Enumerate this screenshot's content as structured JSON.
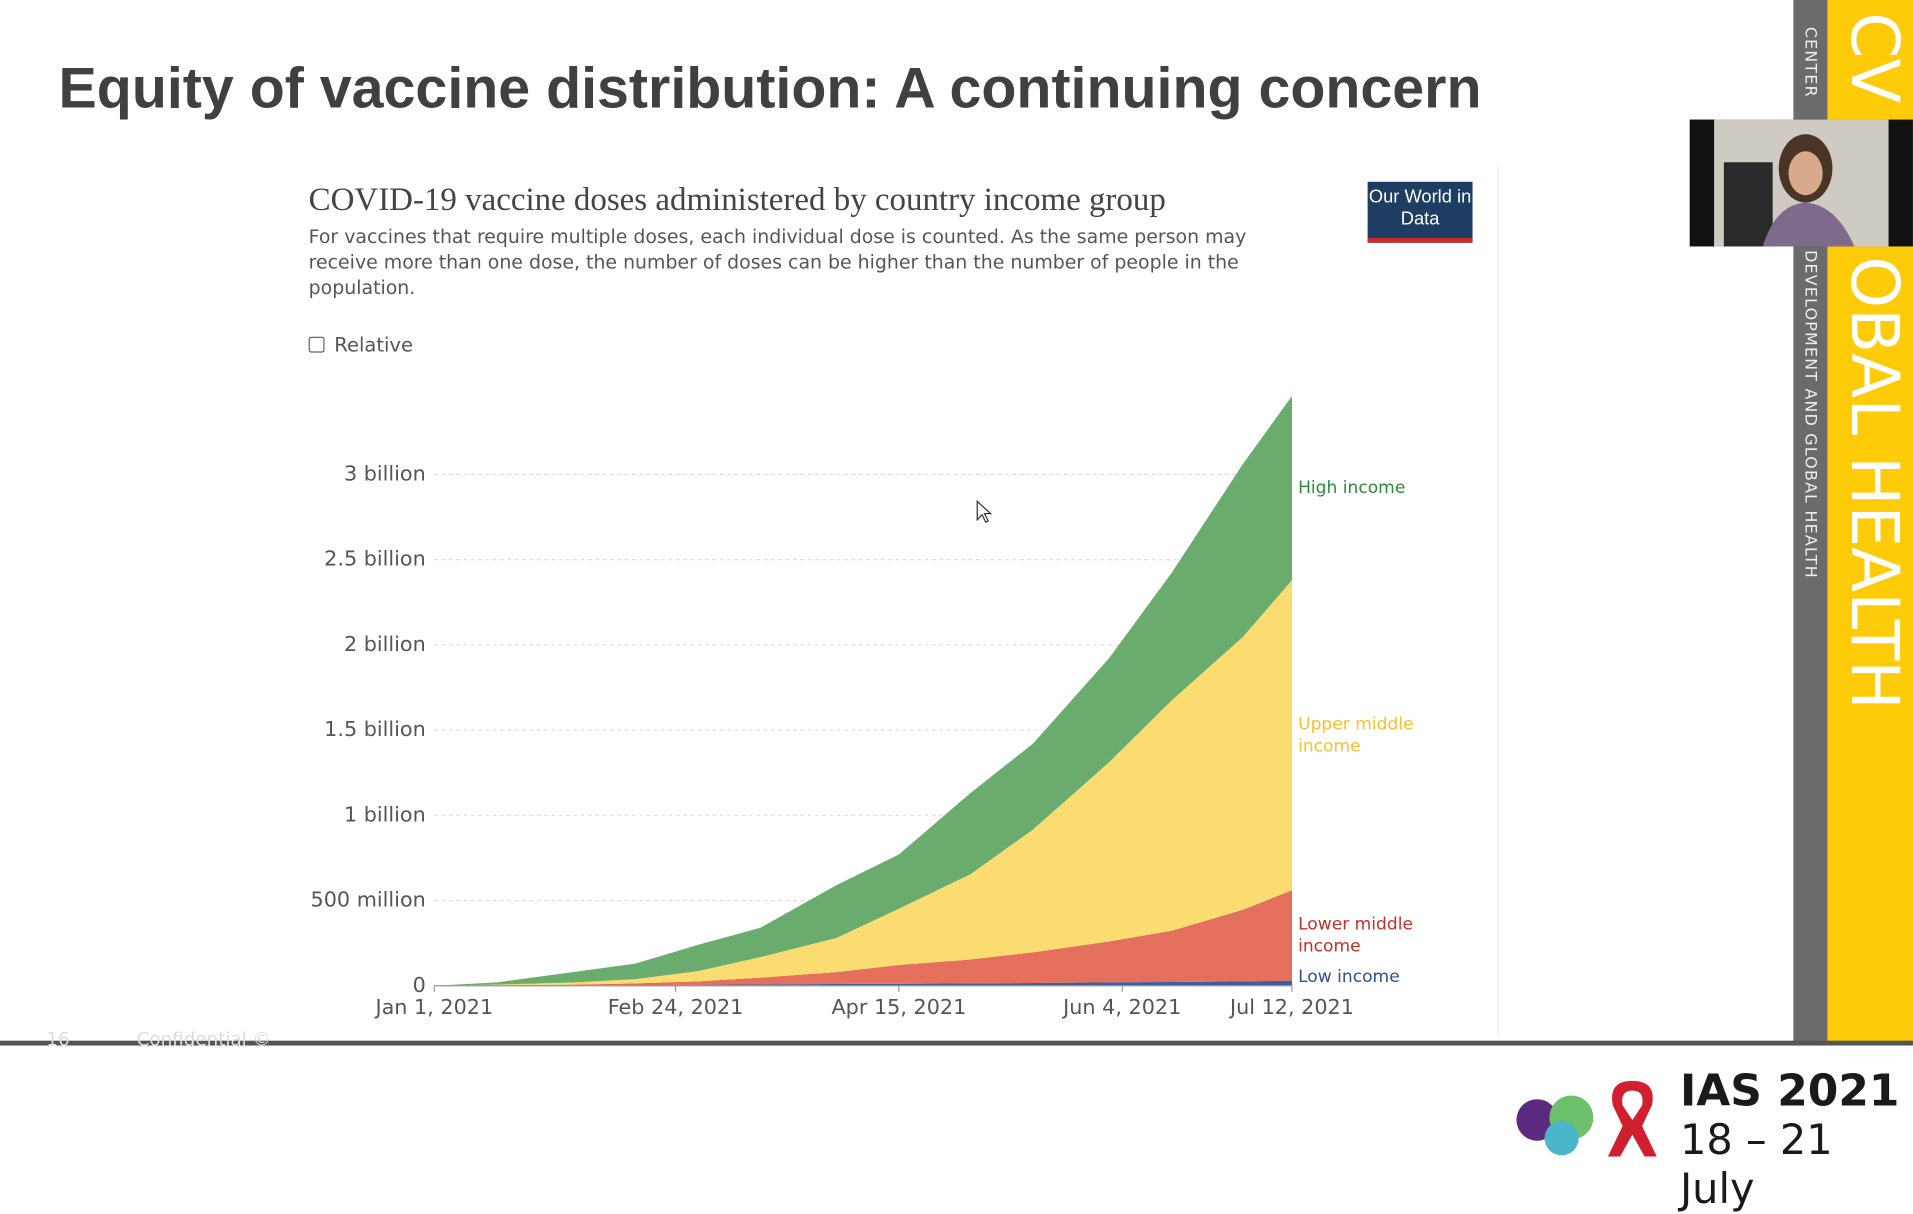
{
  "slide": {
    "title": "Equity of vaccine distribution: A continuing concern"
  },
  "sidebar": {
    "org_top": "CENTER",
    "org_bottom": "DEVELOPMENT AND GLOBAL HEALTH",
    "brand_top": "CV",
    "brand_bottom": "OBAL HEALTH"
  },
  "footer": {
    "page": "16",
    "note": "Confidential ©",
    "event": "IAS 2021",
    "dates": "18 – 21 July"
  },
  "chart_data": {
    "type": "area",
    "stacked": true,
    "title": "COVID-19 vaccine doses administered by country income group",
    "subtitle": "For vaccines that require multiple doses, each individual dose is counted. As the same person may receive more than one dose, the number of doses can be higher than the number of people in the population.",
    "toggle_label": "Relative",
    "logo": "Our World in Data",
    "x": [
      "2021-01-01",
      "2021-01-15",
      "2021-02-01",
      "2021-02-15",
      "2021-03-01",
      "2021-03-15",
      "2021-04-01",
      "2021-04-15",
      "2021-05-01",
      "2021-05-15",
      "2021-06-01",
      "2021-06-15",
      "2021-07-01",
      "2021-07-12"
    ],
    "xlim": [
      "2021-01-01",
      "2021-07-12"
    ],
    "xticks": [
      {
        "value": "2021-01-01",
        "label": "Jan 1, 2021"
      },
      {
        "value": "2021-02-24",
        "label": "Feb 24, 2021"
      },
      {
        "value": "2021-04-15",
        "label": "Apr 15, 2021"
      },
      {
        "value": "2021-06-04",
        "label": "Jun 4, 2021"
      },
      {
        "value": "2021-07-12",
        "label": "Jul 12, 2021"
      }
    ],
    "ylim": [
      0,
      3.5
    ],
    "yticks": [
      0,
      {
        "value": 0.5,
        "label": "500 million"
      },
      {
        "value": 1,
        "label": "1 billion"
      },
      {
        "value": 1.5,
        "label": "1.5 billion"
      },
      {
        "value": 2,
        "label": "2 billion"
      },
      {
        "value": 2.5,
        "label": "2.5 billion"
      },
      {
        "value": 3,
        "label": "3 billion"
      }
    ],
    "grid": true,
    "series": [
      {
        "name": "Low income",
        "color": "#3d5f9e",
        "label_color": "#2f4f8f",
        "values": [
          0,
          0.001,
          0.002,
          0.004,
          0.006,
          0.008,
          0.01,
          0.012,
          0.014,
          0.016,
          0.02,
          0.022,
          0.026,
          0.03
        ]
      },
      {
        "name": "Lower middle income",
        "color": "#e46f5c",
        "label_color": "#c0302a",
        "values": [
          0,
          0.002,
          0.005,
          0.01,
          0.02,
          0.04,
          0.07,
          0.11,
          0.14,
          0.18,
          0.24,
          0.3,
          0.42,
          0.53
        ]
      },
      {
        "name": "Upper middle income",
        "color": "#fbdc70",
        "label_color": "#f2c230",
        "values": [
          0,
          0.004,
          0.012,
          0.025,
          0.06,
          0.12,
          0.2,
          0.33,
          0.5,
          0.72,
          1.05,
          1.35,
          1.6,
          1.82
        ]
      },
      {
        "name": "High income",
        "color": "#6aab6e",
        "label_color": "#2d8a3c",
        "values": [
          0,
          0.013,
          0.061,
          0.091,
          0.154,
          0.172,
          0.31,
          0.318,
          0.476,
          0.504,
          0.61,
          0.748,
          1.014,
          1.08
        ]
      }
    ]
  }
}
